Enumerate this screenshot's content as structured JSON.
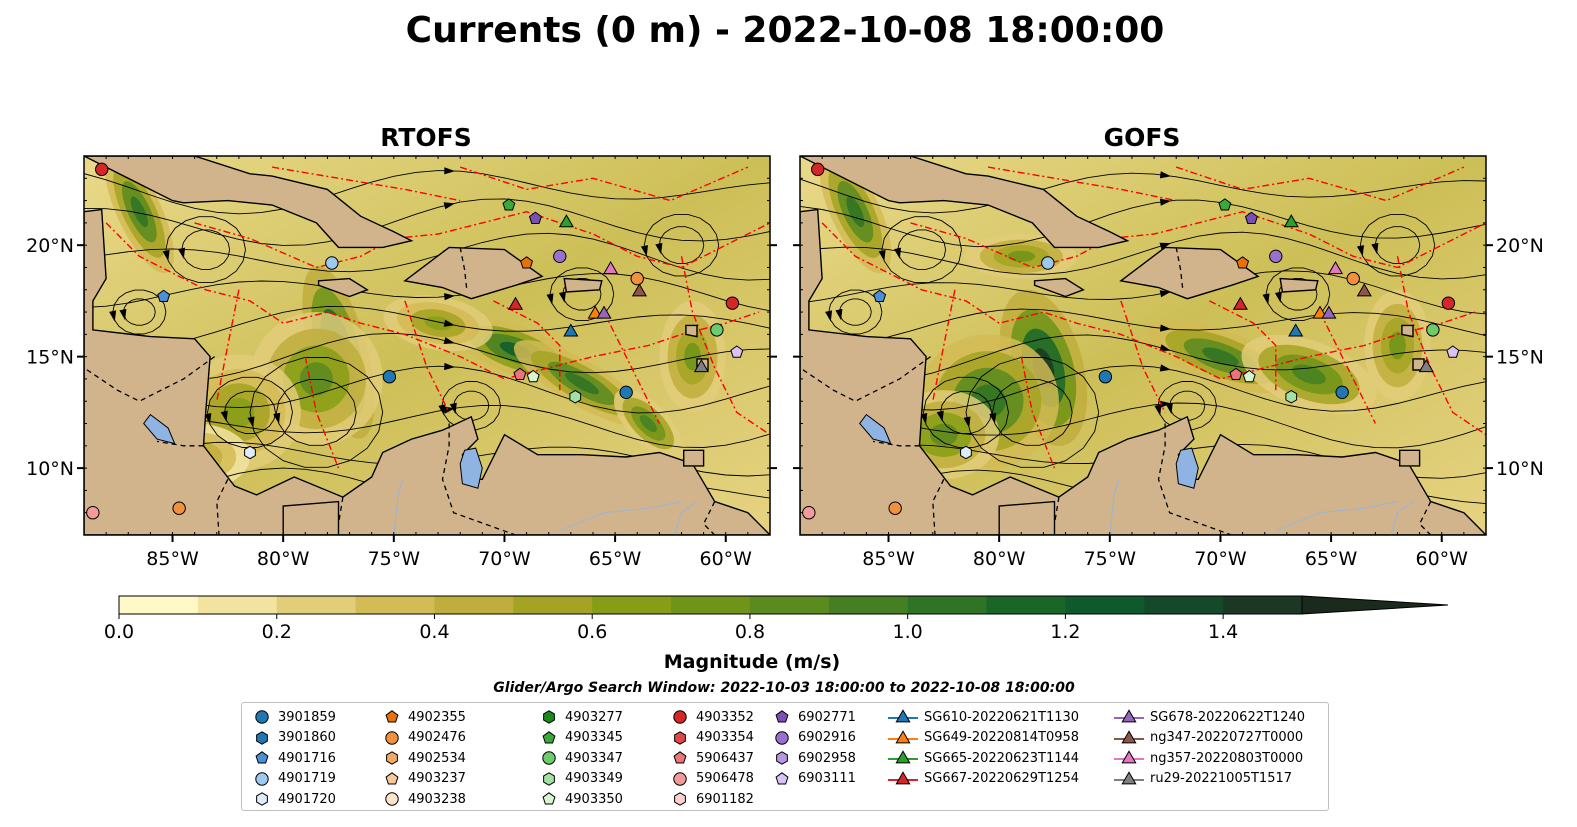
{
  "title": "Currents (0 m) - 2022-10-08 18:00:00",
  "panels": [
    {
      "name": "RTOFS"
    },
    {
      "name": "GOFS"
    }
  ],
  "map": {
    "lon_range": [
      -89,
      -58
    ],
    "lat_range": [
      7,
      24
    ],
    "lon_ticks": [
      "85°W",
      "80°W",
      "75°W",
      "70°W",
      "65°W",
      "60°W"
    ],
    "lat_ticks": [
      "10°N",
      "15°N",
      "20°N"
    ],
    "land_color": "#d2b48c",
    "eez_color": "#ff0000",
    "lake_color": "#8fb4e3"
  },
  "colorbar": {
    "label": "Magnitude (m/s)",
    "min": 0.0,
    "max": 1.5,
    "extend": "max",
    "ticks": [
      "0.0",
      "0.2",
      "0.4",
      "0.6",
      "0.8",
      "1.0",
      "1.2",
      "1.4"
    ],
    "colors": [
      "#fff9c7",
      "#f2e4a0",
      "#e2cd79",
      "#d3bb55",
      "#bfae3d",
      "#a5a323",
      "#879d15",
      "#6f9418",
      "#5b8a1e",
      "#448023",
      "#2f7326",
      "#196628",
      "#0f5a2c",
      "#16492a",
      "#1c3825",
      "#1a2a1c"
    ]
  },
  "search_window": "Glider/Argo Search Window: 2022-10-03 18:00:00 to 2022-10-08 18:00:00",
  "legend": {
    "columns": [
      [
        {
          "label": "3901859",
          "marker": "circle",
          "color": "#1f77b4"
        },
        {
          "label": "3901860",
          "marker": "hexagon",
          "color": "#1f77b4"
        },
        {
          "label": "4901716",
          "marker": "pentagon",
          "color": "#4a90d9"
        },
        {
          "label": "4901719",
          "marker": "circle",
          "color": "#9ec9ee"
        },
        {
          "label": "4901720",
          "marker": "hexagon",
          "color": "#dcecfa"
        }
      ],
      [
        {
          "label": "4902355",
          "marker": "pentagon",
          "color": "#e8710a"
        },
        {
          "label": "4902476",
          "marker": "circle",
          "color": "#f2913d"
        },
        {
          "label": "4902534",
          "marker": "hexagon",
          "color": "#f5aa63"
        },
        {
          "label": "4903237",
          "marker": "pentagon",
          "color": "#f9c99a"
        },
        {
          "label": "4903238",
          "marker": "circle",
          "color": "#fde3cb"
        }
      ],
      [
        {
          "label": "4903277",
          "marker": "hexagon",
          "color": "#1a8a1a"
        },
        {
          "label": "4903345",
          "marker": "pentagon",
          "color": "#3aa83a"
        },
        {
          "label": "4903347",
          "marker": "circle",
          "color": "#6ccc6c"
        },
        {
          "label": "4903349",
          "marker": "hexagon",
          "color": "#a3e0a3"
        },
        {
          "label": "4903350",
          "marker": "pentagon",
          "color": "#d8f5cf"
        }
      ],
      [
        {
          "label": "4903352",
          "marker": "circle",
          "color": "#d62728"
        },
        {
          "label": "4903354",
          "marker": "hexagon",
          "color": "#e0474a"
        },
        {
          "label": "5906437",
          "marker": "pentagon",
          "color": "#ec7377"
        },
        {
          "label": "5906478",
          "marker": "circle",
          "color": "#f49a9b"
        },
        {
          "label": "6901182",
          "marker": "hexagon",
          "color": "#fcd0cf"
        }
      ],
      [
        {
          "label": "6902771",
          "marker": "pentagon",
          "color": "#7b4fb4"
        },
        {
          "label": "6902916",
          "marker": "circle",
          "color": "#9b6fcf"
        },
        {
          "label": "6902958",
          "marker": "hexagon",
          "color": "#b996e2"
        },
        {
          "label": "6903111",
          "marker": "pentagon",
          "color": "#dac3f6"
        }
      ],
      [
        {
          "label": "SG610-20220621T1130",
          "marker": "triangle",
          "color": "#1f77b4"
        },
        {
          "label": "SG649-20220814T0958",
          "marker": "triangle",
          "color": "#ff7f0e"
        },
        {
          "label": "SG665-20220623T1144",
          "marker": "triangle",
          "color": "#2ca02c"
        },
        {
          "label": "SG667-20220629T1254",
          "marker": "triangle",
          "color": "#d62728"
        }
      ],
      [
        {
          "label": "SG678-20220622T1240",
          "marker": "triangle",
          "color": "#9467bd"
        },
        {
          "label": "ng347-20220727T0000",
          "marker": "triangle",
          "color": "#8c564b"
        },
        {
          "label": "ng357-20220803T0000",
          "marker": "triangle",
          "color": "#e377c2"
        },
        {
          "label": "ru29-20221005T1517",
          "marker": "triangle",
          "color": "#7f7f7f"
        }
      ]
    ]
  },
  "platforms": [
    {
      "marker": "circle",
      "color": "#d62728",
      "lon": -88.2,
      "lat": 23.4
    },
    {
      "marker": "pentagon",
      "color": "#3aa83a",
      "lon": -69.8,
      "lat": 21.8
    },
    {
      "marker": "pentagon",
      "color": "#7b4fb4",
      "lon": -68.6,
      "lat": 21.2
    },
    {
      "marker": "triangle",
      "color": "#2ca02c",
      "lon": -67.2,
      "lat": 21.0
    },
    {
      "marker": "circle",
      "color": "#9ec9ee",
      "lon": -77.8,
      "lat": 19.2
    },
    {
      "marker": "pentagon",
      "color": "#e8710a",
      "lon": -69.0,
      "lat": 19.2
    },
    {
      "marker": "circle",
      "color": "#9b6fcf",
      "lon": -67.5,
      "lat": 19.5
    },
    {
      "marker": "triangle",
      "color": "#e377c2",
      "lon": -65.2,
      "lat": 18.9
    },
    {
      "marker": "circle",
      "color": "#f2913d",
      "lon": -64.0,
      "lat": 18.5
    },
    {
      "marker": "triangle",
      "color": "#8c564b",
      "lon": -63.9,
      "lat": 17.9
    },
    {
      "marker": "pentagon",
      "color": "#4a90d9",
      "lon": -85.4,
      "lat": 17.7
    },
    {
      "marker": "triangle",
      "color": "#d62728",
      "lon": -69.5,
      "lat": 17.3
    },
    {
      "marker": "circle",
      "color": "#d62728",
      "lon": -59.7,
      "lat": 17.4
    },
    {
      "marker": "triangle",
      "color": "#1f77b4",
      "lon": -67.0,
      "lat": 16.1
    },
    {
      "marker": "triangle",
      "color": "#ff7f0e",
      "lon": -65.9,
      "lat": 16.9
    },
    {
      "marker": "triangle",
      "color": "#9467bd",
      "lon": -65.5,
      "lat": 16.9
    },
    {
      "marker": "circle",
      "color": "#6ccc6c",
      "lon": -60.4,
      "lat": 16.2
    },
    {
      "marker": "pentagon",
      "color": "#dac3f6",
      "lon": -59.5,
      "lat": 15.2
    },
    {
      "marker": "circle",
      "color": "#1f77b4",
      "lon": -75.2,
      "lat": 14.1
    },
    {
      "marker": "pentagon",
      "color": "#ec7377",
      "lon": -69.3,
      "lat": 14.2
    },
    {
      "marker": "pentagon",
      "color": "#d8f5cf",
      "lon": -68.7,
      "lat": 14.1
    },
    {
      "marker": "triangle",
      "color": "#7f7f7f",
      "lon": -61.1,
      "lat": 14.5
    },
    {
      "marker": "hexagon",
      "color": "#a3e0a3",
      "lon": -66.8,
      "lat": 13.2
    },
    {
      "marker": "circle",
      "color": "#1f77b4",
      "lon": -64.5,
      "lat": 13.4
    },
    {
      "marker": "hexagon",
      "color": "#dcecfa",
      "lon": -81.5,
      "lat": 10.7
    },
    {
      "marker": "circle",
      "color": "#f49a9b",
      "lon": -88.6,
      "lat": 8.0
    },
    {
      "marker": "circle",
      "color": "#f2913d",
      "lon": -84.7,
      "lat": 8.2
    }
  ]
}
